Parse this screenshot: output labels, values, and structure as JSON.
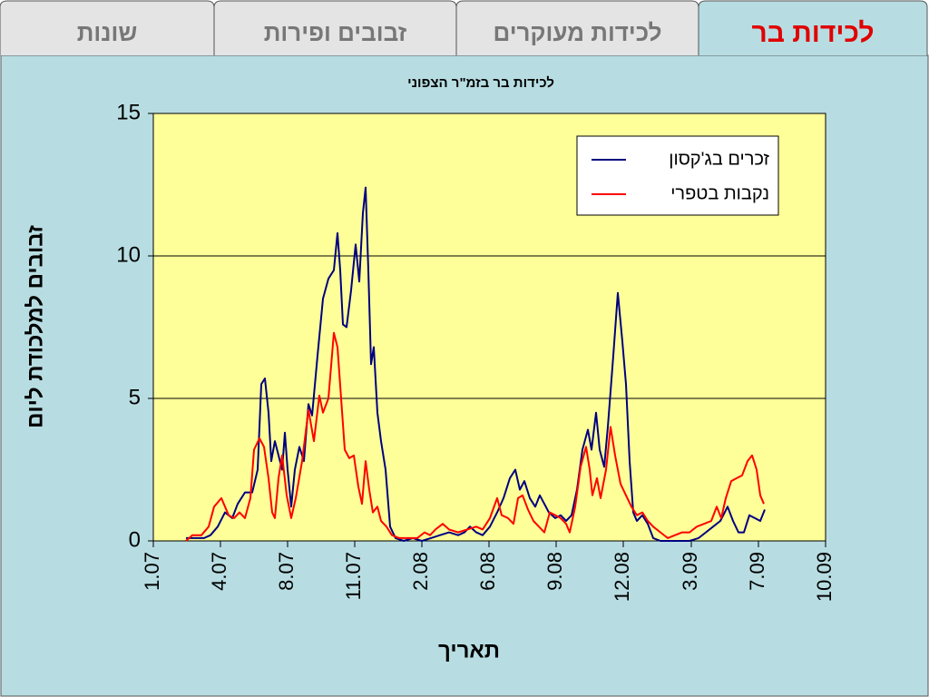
{
  "tabs": [
    "לכידות בר",
    "לכידות מעוקרים",
    "זבובים ופירות",
    "שונות"
  ],
  "chart_data": {
    "type": "line",
    "title": "לכידות בר בזמ\"ר הצפוני",
    "x_label": "תאריך",
    "y_label": "זבובים למלכודת ליום",
    "xlim": [
      0,
      741
    ],
    "xticks": [
      {
        "value": 0,
        "label": "1.07"
      },
      {
        "value": 74,
        "label": "4.07"
      },
      {
        "value": 148,
        "label": "8.07"
      },
      {
        "value": 222,
        "label": "11.07"
      },
      {
        "value": 296,
        "label": "2.08"
      },
      {
        "value": 370,
        "label": "6.08"
      },
      {
        "value": 444,
        "label": "9.08"
      },
      {
        "value": 518,
        "label": "12.08"
      },
      {
        "value": 593,
        "label": "3.09"
      },
      {
        "value": 667,
        "label": "7.09"
      },
      {
        "value": 741,
        "label": "10.09"
      }
    ],
    "ylim": [
      0,
      15
    ],
    "yticks": [
      0,
      5,
      10,
      15
    ],
    "grid": true,
    "legend": "upper right",
    "series": [
      {
        "name": "זכרים בג'קסון",
        "color": "#000080",
        "x": [
          36,
          46,
          56,
          63,
          71,
          79,
          87,
          93,
          101,
          109,
          115,
          119,
          123,
          127,
          130,
          134,
          138,
          142,
          145,
          148,
          152,
          156,
          161,
          166,
          171,
          175,
          181,
          187,
          193,
          199,
          203,
          206,
          209,
          213,
          218,
          223,
          227,
          231,
          234,
          237,
          240,
          243,
          247,
          251,
          256,
          261,
          267,
          276,
          286,
          296,
          306,
          316,
          326,
          336,
          343,
          349,
          356,
          363,
          371,
          379,
          386,
          393,
          399,
          404,
          409,
          415,
          421,
          426,
          431,
          436,
          443,
          449,
          455,
          461,
          467,
          473,
          479,
          483,
          488,
          492,
          497,
          501,
          507,
          512,
          517,
          521,
          525,
          529,
          533,
          539,
          545,
          551,
          559,
          571,
          581,
          591,
          601,
          609,
          617,
          625,
          633,
          639,
          645,
          651,
          657,
          663,
          669,
          674
        ],
        "values": [
          0.1,
          0.1,
          0.1,
          0.2,
          0.5,
          1.0,
          0.8,
          1.3,
          1.7,
          1.7,
          2.5,
          5.5,
          5.7,
          4.5,
          2.8,
          3.5,
          3.0,
          2.5,
          3.8,
          2.5,
          1.2,
          2.5,
          3.3,
          2.8,
          4.8,
          4.4,
          6.5,
          8.5,
          9.2,
          9.5,
          10.8,
          9.5,
          7.6,
          7.5,
          8.8,
          10.4,
          9.1,
          11.5,
          12.4,
          9.5,
          6.2,
          6.8,
          4.5,
          3.5,
          2.5,
          0.5,
          0.1,
          0.0,
          0.1,
          0.0,
          0.1,
          0.2,
          0.3,
          0.2,
          0.3,
          0.5,
          0.3,
          0.2,
          0.5,
          1.0,
          1.5,
          2.2,
          2.5,
          1.8,
          2.1,
          1.5,
          1.2,
          1.6,
          1.3,
          1.0,
          0.8,
          0.9,
          0.7,
          0.9,
          1.8,
          3.2,
          3.9,
          3.2,
          4.5,
          3.2,
          2.6,
          4.0,
          6.5,
          8.7,
          7.0,
          5.5,
          2.8,
          1.0,
          0.7,
          0.9,
          0.6,
          0.1,
          0.0,
          0.0,
          0.0,
          0.0,
          0.1,
          0.3,
          0.5,
          0.7,
          1.2,
          0.7,
          0.3,
          0.3,
          0.9,
          0.8,
          0.7,
          1.1
        ]
      },
      {
        "name": "נקבות בטפרי",
        "color": "#ff0000",
        "x": [
          36,
          43,
          53,
          61,
          67,
          75,
          83,
          89,
          95,
          101,
          107,
          111,
          117,
          122,
          127,
          131,
          134,
          138,
          142,
          147,
          152,
          157,
          164,
          171,
          177,
          183,
          187,
          193,
          199,
          203,
          207,
          211,
          216,
          221,
          226,
          230,
          234,
          238,
          242,
          247,
          251,
          257,
          263,
          271,
          281,
          291,
          299,
          305,
          311,
          319,
          326,
          336,
          346,
          356,
          363,
          371,
          379,
          384,
          391,
          397,
          402,
          407,
          413,
          419,
          425,
          431,
          437,
          443,
          449,
          455,
          459,
          465,
          471,
          477,
          481,
          484,
          489,
          493,
          499,
          504,
          509,
          515,
          521,
          527,
          533,
          539,
          545,
          551,
          559,
          567,
          575,
          583,
          591,
          599,
          607,
          615,
          621,
          626,
          631,
          637,
          643,
          649,
          655,
          660,
          665,
          669,
          673
        ],
        "values": [
          0.0,
          0.2,
          0.2,
          0.5,
          1.2,
          1.5,
          0.9,
          0.8,
          1.0,
          0.8,
          1.5,
          3.2,
          3.6,
          3.3,
          2.2,
          1.0,
          0.8,
          2.2,
          3.0,
          1.6,
          0.8,
          1.5,
          2.8,
          4.6,
          3.5,
          5.1,
          4.5,
          5.0,
          7.3,
          6.8,
          5.0,
          3.2,
          2.9,
          3.0,
          1.9,
          1.3,
          2.8,
          1.8,
          1.0,
          1.2,
          0.7,
          0.5,
          0.2,
          0.1,
          0.1,
          0.1,
          0.3,
          0.2,
          0.4,
          0.6,
          0.4,
          0.3,
          0.4,
          0.5,
          0.4,
          0.8,
          1.5,
          0.9,
          0.8,
          0.6,
          1.5,
          1.6,
          1.1,
          0.7,
          0.5,
          0.3,
          1.0,
          0.9,
          0.8,
          0.6,
          0.3,
          1.2,
          2.6,
          3.3,
          2.5,
          1.6,
          2.2,
          1.5,
          2.5,
          4.0,
          3.0,
          2.0,
          1.6,
          1.2,
          0.9,
          1.0,
          0.7,
          0.5,
          0.3,
          0.1,
          0.2,
          0.3,
          0.3,
          0.5,
          0.6,
          0.7,
          1.2,
          0.8,
          1.5,
          2.1,
          2.2,
          2.3,
          2.8,
          3.0,
          2.5,
          1.6,
          1.3
        ]
      }
    ]
  }
}
